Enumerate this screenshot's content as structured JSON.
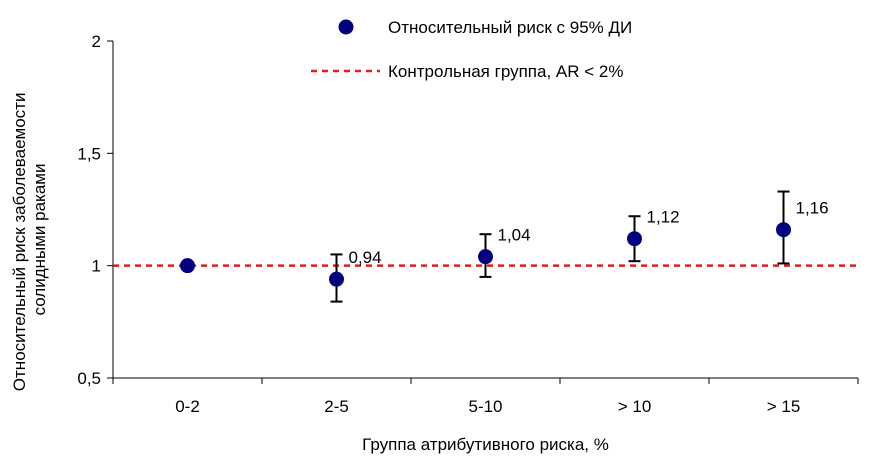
{
  "chart_data": {
    "type": "scatter",
    "title": "",
    "xlabel": "Группа атрибутивного риска, %",
    "ylabel_lines": [
      "Относительный риск заболеваемости",
      "солидными раками"
    ],
    "categories": [
      "0-2",
      "2-5",
      "5-10",
      "> 10",
      "> 15"
    ],
    "ylim": [
      0.5,
      2
    ],
    "yticks": [
      0.5,
      1,
      1.5,
      2
    ],
    "ytick_labels": [
      "0,5",
      "1",
      "1,5",
      "2"
    ],
    "grid": false,
    "legend_position": "top",
    "series": [
      {
        "name": "Относительный риск с 95% ДИ",
        "values": [
          1.0,
          0.94,
          1.04,
          1.12,
          1.16
        ],
        "ci_low": [
          1.0,
          0.84,
          0.95,
          1.02,
          1.01
        ],
        "ci_high": [
          1.0,
          1.05,
          1.14,
          1.22,
          1.33
        ],
        "data_labels": [
          "",
          "0,94",
          "1,04",
          "1,12",
          "1,16"
        ],
        "color": "#000080"
      }
    ],
    "reference_line": {
      "name": "Контрольная группа, AR < 2%",
      "value": 1,
      "color": "#e41a1c",
      "style": "dashed"
    }
  }
}
